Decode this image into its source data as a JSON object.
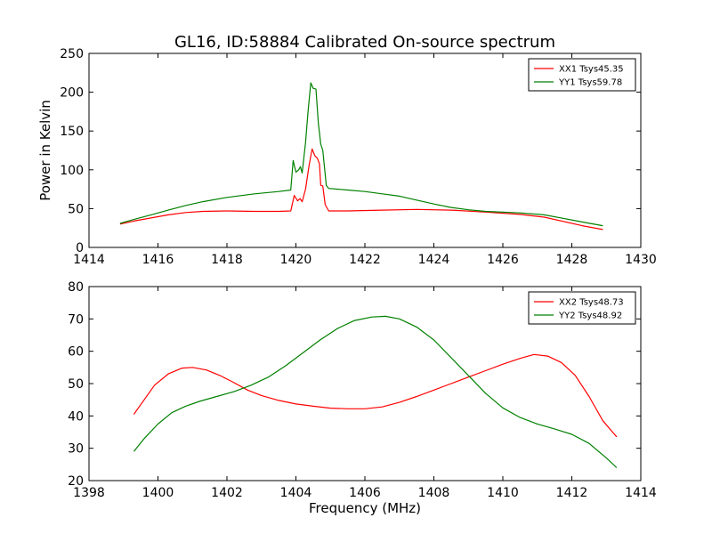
{
  "figure": {
    "title": "GL16, ID:58884 Calibrated On-source spectrum",
    "shared_xlabel": "Frequency (MHz)"
  },
  "chart_data": [
    {
      "type": "line",
      "title": "GL16, ID:58884 Calibrated On-source spectrum",
      "xlabel": "",
      "ylabel": "Power in Kelvin",
      "xlim": [
        1414,
        1430
      ],
      "ylim": [
        0,
        250
      ],
      "xticks": [
        "1414",
        "1416",
        "1418",
        "1420",
        "1422",
        "1424",
        "1426",
        "1428",
        "1430"
      ],
      "yticks": [
        "0",
        "50",
        "100",
        "150",
        "200",
        "250"
      ],
      "grid": false,
      "legend_position": "top-right",
      "series": [
        {
          "name": "XX1 Tsys45.35",
          "color": "#ff0000",
          "points": [
            [
              1414.9,
              30
            ],
            [
              1415.3,
              34
            ],
            [
              1415.8,
              38
            ],
            [
              1416.3,
              42
            ],
            [
              1416.8,
              45
            ],
            [
              1417.3,
              46.5
            ],
            [
              1418,
              47
            ],
            [
              1418.8,
              46.5
            ],
            [
              1419.5,
              46.5
            ],
            [
              1419.85,
              47
            ],
            [
              1419.95,
              67
            ],
            [
              1420.05,
              60
            ],
            [
              1420.12,
              63
            ],
            [
              1420.18,
              59
            ],
            [
              1420.28,
              75
            ],
            [
              1420.38,
              105
            ],
            [
              1420.47,
              127
            ],
            [
              1420.55,
              118
            ],
            [
              1420.62,
              115
            ],
            [
              1420.68,
              108
            ],
            [
              1420.72,
              80
            ],
            [
              1420.78,
              79
            ],
            [
              1420.85,
              55
            ],
            [
              1420.95,
              47
            ],
            [
              1421.5,
              47
            ],
            [
              1422.5,
              48
            ],
            [
              1423.5,
              49
            ],
            [
              1424.5,
              48
            ],
            [
              1425.5,
              45.5
            ],
            [
              1426.5,
              42.5
            ],
            [
              1427.2,
              39
            ],
            [
              1427.8,
              33
            ],
            [
              1428.3,
              28
            ],
            [
              1428.9,
              23
            ]
          ]
        },
        {
          "name": "YY1 Tsys59.78",
          "color": "#008000",
          "points": [
            [
              1414.9,
              31
            ],
            [
              1415.3,
              36
            ],
            [
              1415.8,
              42
            ],
            [
              1416.3,
              48
            ],
            [
              1416.8,
              54
            ],
            [
              1417.3,
              59
            ],
            [
              1418,
              64.5
            ],
            [
              1418.8,
              69
            ],
            [
              1419.5,
              72
            ],
            [
              1419.85,
              74
            ],
            [
              1419.92,
              112
            ],
            [
              1420.0,
              97
            ],
            [
              1420.08,
              100
            ],
            [
              1420.13,
              104
            ],
            [
              1420.18,
              96
            ],
            [
              1420.28,
              135
            ],
            [
              1420.35,
              175
            ],
            [
              1420.43,
              212
            ],
            [
              1420.5,
              205
            ],
            [
              1420.58,
              204
            ],
            [
              1420.65,
              160
            ],
            [
              1420.72,
              133
            ],
            [
              1420.78,
              125
            ],
            [
              1420.88,
              80
            ],
            [
              1420.95,
              76
            ],
            [
              1421.5,
              74
            ],
            [
              1422,
              72
            ],
            [
              1422.5,
              69
            ],
            [
              1423,
              66
            ],
            [
              1423.5,
              61
            ],
            [
              1424,
              56
            ],
            [
              1424.5,
              51.5
            ],
            [
              1425,
              48.5
            ],
            [
              1425.5,
              46.5
            ],
            [
              1426.5,
              44.5
            ],
            [
              1427.2,
              42
            ],
            [
              1427.8,
              37
            ],
            [
              1428.4,
              32
            ],
            [
              1428.9,
              28
            ]
          ]
        }
      ]
    },
    {
      "type": "line",
      "title": "",
      "xlabel": "Frequency (MHz)",
      "ylabel": "",
      "xlim": [
        1398,
        1414
      ],
      "ylim": [
        20,
        80
      ],
      "xticks": [
        "1398",
        "1400",
        "1402",
        "1404",
        "1406",
        "1408",
        "1410",
        "1412",
        "1414"
      ],
      "yticks": [
        "20",
        "30",
        "40",
        "50",
        "60",
        "70",
        "80"
      ],
      "grid": false,
      "legend_position": "top-right",
      "series": [
        {
          "name": "XX2 Tsys48.73",
          "color": "#ff0000",
          "points": [
            [
              1399.3,
              40.5
            ],
            [
              1399.6,
              45
            ],
            [
              1399.9,
              49.5
            ],
            [
              1400.3,
              53
            ],
            [
              1400.7,
              54.8
            ],
            [
              1401.0,
              55
            ],
            [
              1401.4,
              54.2
            ],
            [
              1401.8,
              52.5
            ],
            [
              1402.2,
              50.3
            ],
            [
              1402.6,
              48
            ],
            [
              1403.0,
              46.3
            ],
            [
              1403.5,
              44.8
            ],
            [
              1404.0,
              43.7
            ],
            [
              1404.5,
              43.0
            ],
            [
              1405.0,
              42.4
            ],
            [
              1405.5,
              42.2
            ],
            [
              1406.0,
              42.2
            ],
            [
              1406.5,
              42.8
            ],
            [
              1407.0,
              44.2
            ],
            [
              1407.5,
              46.0
            ],
            [
              1408.0,
              48.0
            ],
            [
              1408.5,
              50.0
            ],
            [
              1409.0,
              52.0
            ],
            [
              1409.5,
              54.0
            ],
            [
              1410.0,
              56.0
            ],
            [
              1410.5,
              57.8
            ],
            [
              1410.9,
              59.0
            ],
            [
              1411.3,
              58.5
            ],
            [
              1411.7,
              56.5
            ],
            [
              1412.1,
              52.5
            ],
            [
              1412.5,
              46.0
            ],
            [
              1412.9,
              38.5
            ],
            [
              1413.3,
              33.5
            ]
          ]
        },
        {
          "name": "YY2 Tsys48.92",
          "color": "#008000",
          "points": [
            [
              1399.3,
              29
            ],
            [
              1399.6,
              33
            ],
            [
              1400.0,
              37.5
            ],
            [
              1400.4,
              41
            ],
            [
              1400.8,
              43
            ],
            [
              1401.2,
              44.5
            ],
            [
              1401.7,
              46
            ],
            [
              1402.2,
              47.5
            ],
            [
              1402.7,
              49.5
            ],
            [
              1403.2,
              52
            ],
            [
              1403.7,
              55.5
            ],
            [
              1404.2,
              59.5
            ],
            [
              1404.7,
              63.5
            ],
            [
              1405.2,
              67
            ],
            [
              1405.7,
              69.5
            ],
            [
              1406.2,
              70.6
            ],
            [
              1406.6,
              70.8
            ],
            [
              1407.0,
              70
            ],
            [
              1407.5,
              67.5
            ],
            [
              1408.0,
              63.5
            ],
            [
              1408.5,
              58
            ],
            [
              1409.0,
              52.5
            ],
            [
              1409.5,
              47
            ],
            [
              1410.0,
              42.5
            ],
            [
              1410.5,
              39.5
            ],
            [
              1411.0,
              37.5
            ],
            [
              1411.5,
              36
            ],
            [
              1412.0,
              34.3
            ],
            [
              1412.5,
              31.5
            ],
            [
              1413.0,
              27
            ],
            [
              1413.3,
              24
            ]
          ]
        }
      ]
    }
  ]
}
